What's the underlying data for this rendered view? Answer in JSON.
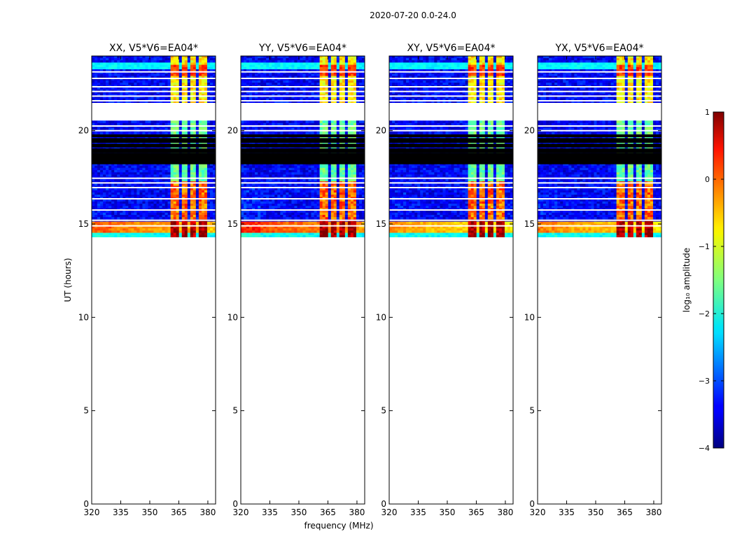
{
  "figure": {
    "suptitle": "2020-07-20 0.0-24.0",
    "xlabel": "frequency (MHz)",
    "ylabel": "UT (hours)"
  },
  "chart_data": {
    "type": "heatmap",
    "title": "2020-07-20 0.0-24.0",
    "xlabel": "frequency (MHz)",
    "ylabel": "UT (hours)",
    "xlim": [
      320,
      384
    ],
    "ylim": [
      0,
      24
    ],
    "xticks": [
      320,
      335,
      350,
      365,
      380
    ],
    "yticks": [
      0,
      5,
      10,
      15,
      20
    ],
    "panels": [
      {
        "title": "XX, V5*V6=EA04*",
        "baseline_strength": 0.85,
        "low_edge_strength": 0.55
      },
      {
        "title": "YY, V5*V6=EA04*",
        "baseline_strength": 1.0,
        "low_edge_strength": 1.0
      },
      {
        "title": "XY, V5*V6=EA04*",
        "baseline_strength": 0.7,
        "low_edge_strength": 0.45
      },
      {
        "title": "YX, V5*V6=EA04*",
        "baseline_strength": 0.75,
        "low_edge_strength": 0.5
      }
    ],
    "data_time_range_hours": [
      14.3,
      24.0
    ],
    "blank_gap_hours": [
      [
        20.6,
        21.5
      ]
    ],
    "flagged_black_bands_hours": [
      [
        18.2,
        18.8
      ],
      [
        19.1,
        19.3
      ],
      [
        19.65,
        19.8
      ]
    ],
    "rfi_channels_mhz": [
      [
        361,
        365.5
      ],
      [
        366,
        369.5
      ],
      [
        371,
        374.5
      ],
      [
        376,
        379.5
      ]
    ],
    "colorbar": {
      "label": "log₁₀ amplitude",
      "vmin": -4,
      "vmax": 1,
      "ticks": [
        1,
        0,
        -1,
        -2,
        -3,
        -4
      ],
      "tick_labels": [
        "1",
        "0",
        "−1",
        "−2",
        "−3",
        "−4"
      ],
      "colormap": "jet"
    }
  }
}
